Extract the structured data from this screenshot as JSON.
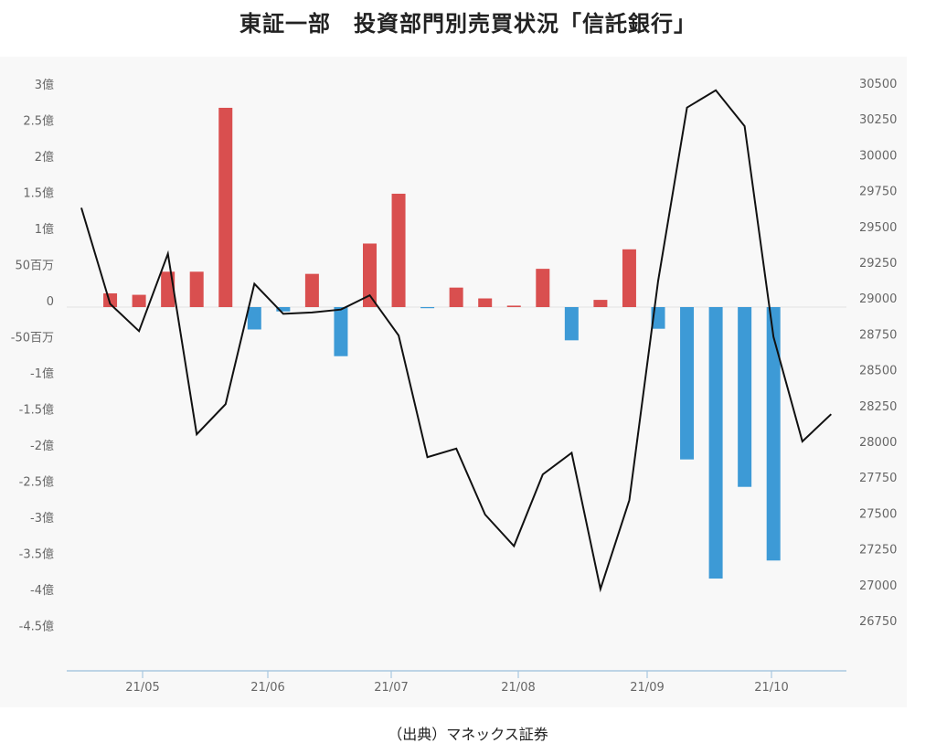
{
  "title": "東証一部　投資部門別売買状況「信託銀行」",
  "source": "（出典）マネックス証券",
  "colors": {
    "positive": "#d94f4f",
    "negative": "#3d9ad6",
    "line": "#111111",
    "axis": "#a9c8e0",
    "tick_text": "#666666"
  },
  "chart_data": {
    "type": "bar+line",
    "title": "東証一部　投資部門別売買状況「信託銀行」",
    "x_ticks": [
      "21/05",
      "21/06",
      "21/07",
      "21/08",
      "21/09",
      "21/10"
    ],
    "left_axis": {
      "ticks": [
        "3億",
        "2.5億",
        "2億",
        "1.5億",
        "1億",
        "50百万",
        "0",
        "-50百万",
        "-1億",
        "-1.5億",
        "-2億",
        "-2.5億",
        "-3億",
        "-3.5億",
        "-4億",
        "-4.5億"
      ],
      "tick_values": [
        3,
        2.5,
        2,
        1.5,
        1,
        0.5,
        0,
        -0.5,
        -1,
        -1.5,
        -2,
        -2.5,
        -3,
        -3.5,
        -4,
        -4.5
      ],
      "unit": "億円",
      "ylim": [
        -5.0,
        3.0
      ]
    },
    "right_axis": {
      "ticks": [
        "30500",
        "30250",
        "30000",
        "29750",
        "29500",
        "29250",
        "29000",
        "28750",
        "28500",
        "28250",
        "28000",
        "27750",
        "27500",
        "27250",
        "27000",
        "26750"
      ],
      "tick_values": [
        30500,
        30250,
        30000,
        29750,
        29500,
        29250,
        29000,
        28750,
        28500,
        28250,
        28000,
        27750,
        27500,
        27250,
        27000,
        26750
      ],
      "ylim": [
        26500,
        30500
      ]
    },
    "bars": {
      "series_unit": "億円",
      "points": [
        {
          "week": 1,
          "value": 0.19
        },
        {
          "week": 2,
          "value": 0.17
        },
        {
          "week": 3,
          "value": 0.49
        },
        {
          "week": 4,
          "value": 0.49
        },
        {
          "week": 5,
          "value": 2.76
        },
        {
          "week": 6,
          "value": -0.31
        },
        {
          "week": 7,
          "value": -0.06
        },
        {
          "week": 8,
          "value": 0.46
        },
        {
          "week": 9,
          "value": -0.68
        },
        {
          "week": 10,
          "value": 0.88
        },
        {
          "week": 11,
          "value": 1.57
        },
        {
          "week": 12,
          "value": -0.01
        },
        {
          "week": 13,
          "value": 0.27
        },
        {
          "week": 14,
          "value": 0.12
        },
        {
          "week": 15,
          "value": 0.02
        },
        {
          "week": 16,
          "value": 0.53
        },
        {
          "week": 17,
          "value": -0.46
        },
        {
          "week": 18,
          "value": 0.1
        },
        {
          "week": 19,
          "value": 0.8
        },
        {
          "week": 20,
          "value": -0.3
        },
        {
          "week": 21,
          "value": -2.11
        },
        {
          "week": 22,
          "value": -3.76
        },
        {
          "week": 23,
          "value": -2.49
        },
        {
          "week": 24,
          "value": -3.51
        }
      ]
    },
    "line": {
      "points": [
        {
          "week": 0,
          "value": 29630
        },
        {
          "week": 1,
          "value": 28960
        },
        {
          "week": 2,
          "value": 28770
        },
        {
          "week": 3,
          "value": 29310
        },
        {
          "week": 4,
          "value": 28050
        },
        {
          "week": 5,
          "value": 28260
        },
        {
          "week": 6,
          "value": 29100
        },
        {
          "week": 7,
          "value": 28890
        },
        {
          "week": 8,
          "value": 28900
        },
        {
          "week": 9,
          "value": 28920
        },
        {
          "week": 10,
          "value": 29020
        },
        {
          "week": 11,
          "value": 28740
        },
        {
          "week": 12,
          "value": 27890
        },
        {
          "week": 13,
          "value": 27950
        },
        {
          "week": 14,
          "value": 27490
        },
        {
          "week": 15,
          "value": 27270
        },
        {
          "week": 16,
          "value": 27770
        },
        {
          "week": 17,
          "value": 27920
        },
        {
          "week": 18,
          "value": 26970
        },
        {
          "week": 19,
          "value": 27590
        },
        {
          "week": 20,
          "value": 29120
        },
        {
          "week": 21,
          "value": 30330
        },
        {
          "week": 22,
          "value": 30450
        },
        {
          "week": 23,
          "value": 30200
        },
        {
          "week": 24,
          "value": 28730
        },
        {
          "week": 25,
          "value": 28000
        },
        {
          "week": 26,
          "value": 28190
        }
      ]
    },
    "grid": false,
    "legend": "none"
  }
}
